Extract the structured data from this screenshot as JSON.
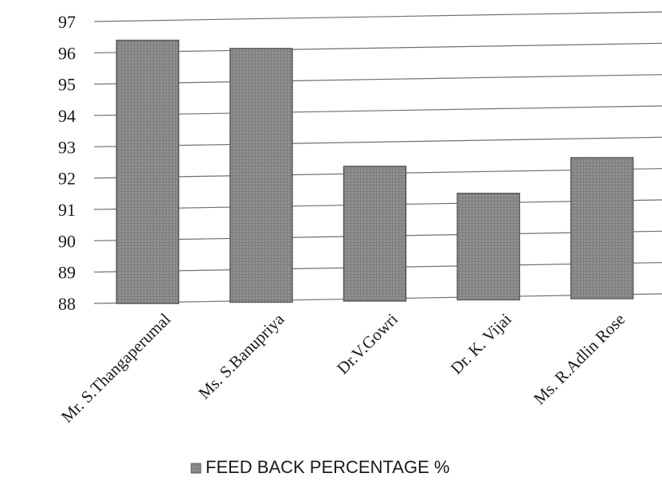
{
  "chart_data": {
    "type": "bar",
    "categories": [
      "Mr. S.Thangaperumal",
      "Ms. S.Banupriya",
      "Dr.V.Gowri",
      "Dr. K. Vijai",
      "Ms. R.Adlin Rose"
    ],
    "series": [
      {
        "name": "FEED BACK PERCENTAGE %",
        "values": [
          96.4,
          96.1,
          92.3,
          91.4,
          92.5
        ]
      }
    ],
    "xlabel": "",
    "ylabel": "",
    "ylim": [
      88,
      97
    ],
    "yticks": [
      88,
      89,
      90,
      91,
      92,
      93,
      94,
      95,
      96,
      97
    ],
    "grid": true,
    "legend_position": "bottom",
    "colors": {
      "bar_fill": "#8f8f8f",
      "bar_stroke": "#5a5a5a",
      "grid": "#6f6f6f"
    }
  }
}
